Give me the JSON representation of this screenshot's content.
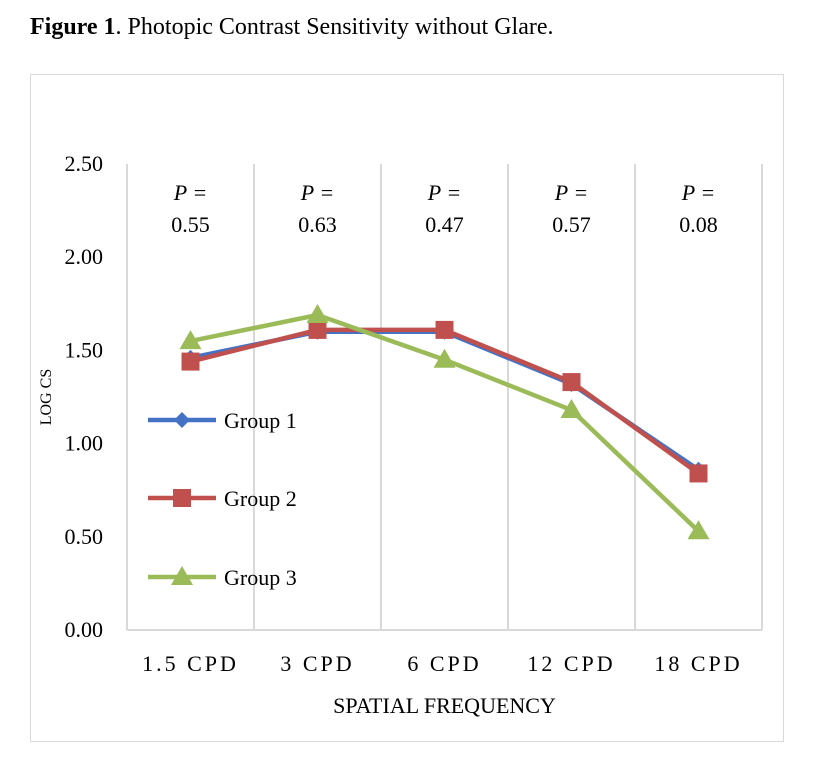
{
  "caption": {
    "label": "Figure 1",
    "text": ".  Photopic Contrast Sensitivity without Glare."
  },
  "chart_data": {
    "type": "line",
    "title": "",
    "xlabel": "SPATIAL FREQUENCY",
    "ylabel": "LOG CS",
    "ylim": [
      0,
      2.5
    ],
    "yticks": [
      "0.00",
      "0.50",
      "1.00",
      "1.50",
      "2.00",
      "2.50"
    ],
    "categories": [
      "1.5 CPD",
      "3 CPD",
      "6 CPD",
      "12 CPD",
      "18 CPD"
    ],
    "legend_position": "left",
    "series": [
      {
        "name": "Group 1",
        "color": "#4472c4",
        "marker": "diamond",
        "values": [
          1.46,
          1.6,
          1.6,
          1.32,
          0.86
        ]
      },
      {
        "name": "Group 2",
        "color": "#c0504d",
        "marker": "square",
        "values": [
          1.44,
          1.61,
          1.61,
          1.33,
          0.84
        ]
      },
      {
        "name": "Group 3",
        "color": "#9bbb59",
        "marker": "triangle",
        "values": [
          1.55,
          1.69,
          1.45,
          1.18,
          0.53
        ]
      }
    ],
    "annotations": [
      {
        "category": "1.5 CPD",
        "label": "P =",
        "value": "0.55"
      },
      {
        "category": "3 CPD",
        "label": "P =",
        "value": "0.63"
      },
      {
        "category": "6 CPD",
        "label": "P =",
        "value": "0.47"
      },
      {
        "category": "12 CPD",
        "label": "P =",
        "value": "0.57"
      },
      {
        "category": "18 CPD",
        "label": "P =",
        "value": "0.08"
      }
    ]
  }
}
